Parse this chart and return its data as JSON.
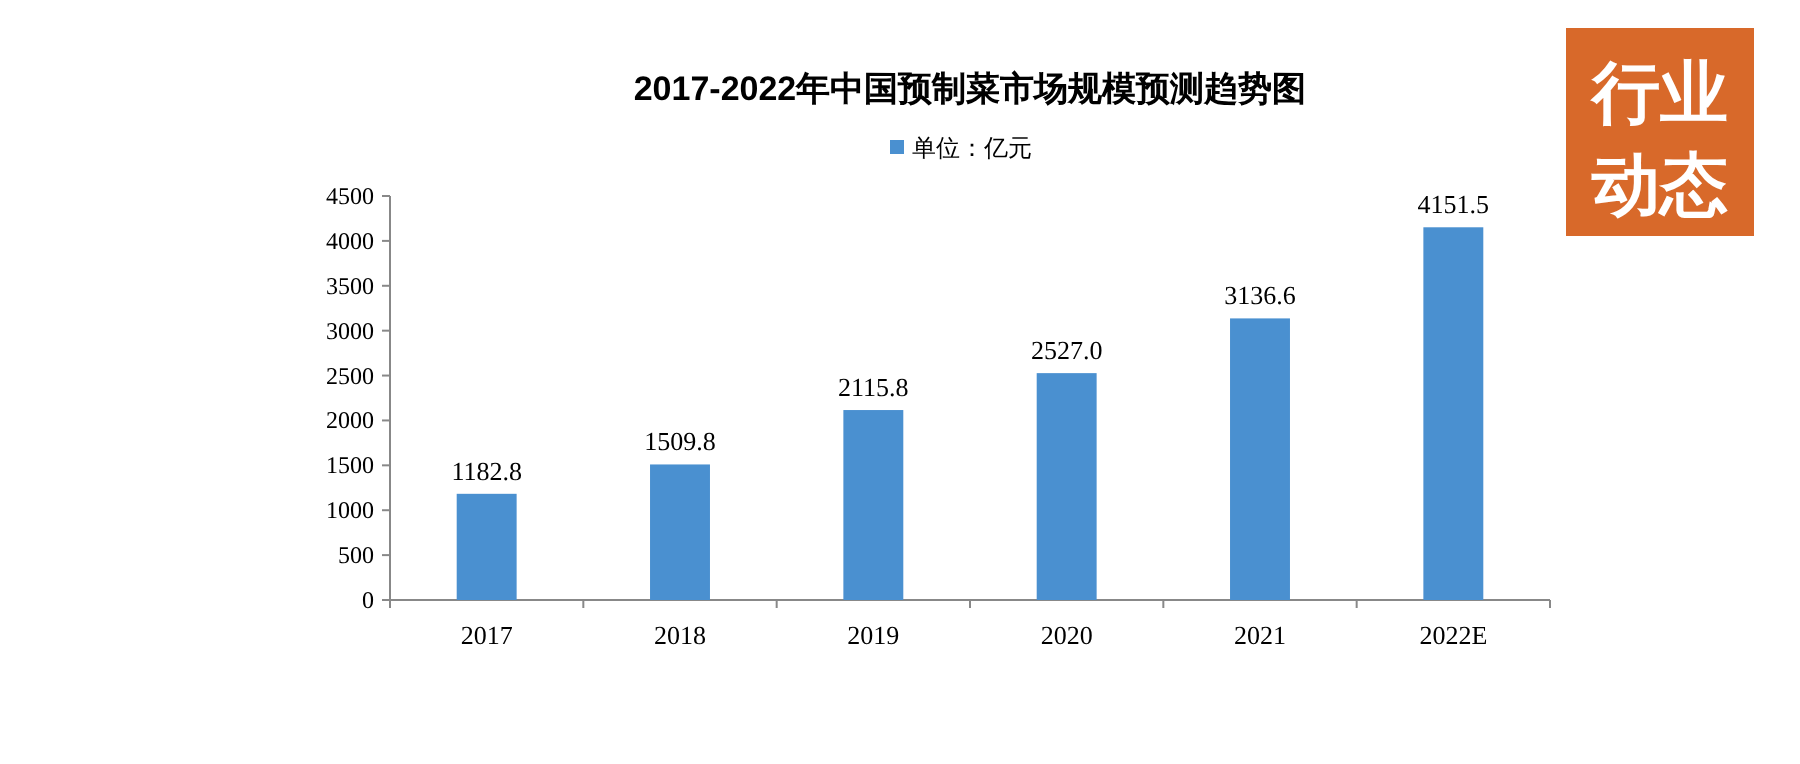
{
  "chart_data": {
    "type": "bar",
    "title": "2017-2022年中国预制菜市场规模预测趋势图",
    "categories": [
      "2017",
      "2018",
      "2019",
      "2020",
      "2021",
      "2022E"
    ],
    "series": [
      {
        "name": "单位：亿元",
        "color": "#4a90d0",
        "values": [
          1182.8,
          1509.8,
          2115.8,
          2527.0,
          3136.6,
          4151.5
        ],
        "value_labels": [
          "1182.8",
          "1509.8",
          "2115.8",
          "2527.0",
          "3136.6",
          "4151.5"
        ]
      }
    ],
    "ylim": [
      0,
      4500
    ],
    "yticks": [
      0,
      500,
      1000,
      1500,
      2000,
      2500,
      3000,
      3500,
      4000,
      4500
    ],
    "grid": false,
    "legend": "top",
    "annotations": [
      "行业动态"
    ]
  }
}
